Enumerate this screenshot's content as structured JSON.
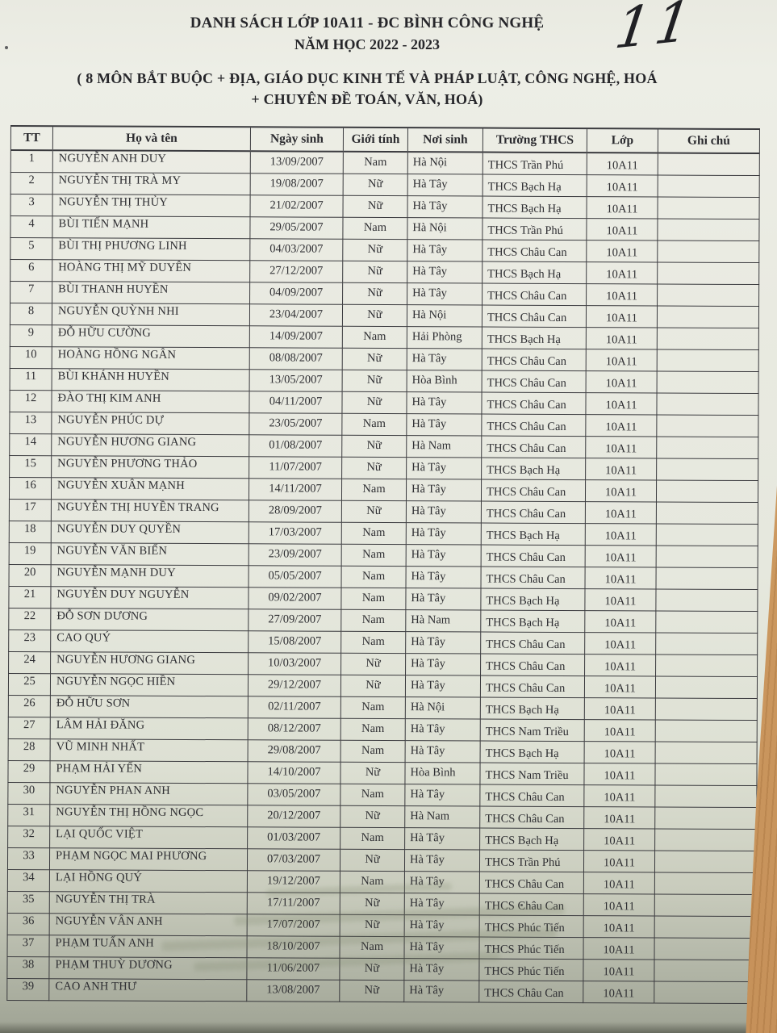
{
  "page": {
    "handwritten_number": "11",
    "title_line1": "DANH SÁCH LỚP 10A11 - ĐC BÌNH CÔNG NGHỆ",
    "title_line2": "NĂM HỌC 2022 - 2023",
    "subtitle_line1": "( 8 MÔN BẮT BUỘC + ĐỊA, GIÁO DỤC KINH TẾ VÀ PHÁP LUẬT, CÔNG NGHỆ, HOÁ",
    "subtitle_line2": "+ CHUYÊN ĐỀ TOÁN, VĂN, HOÁ)"
  },
  "colors": {
    "paper": "#e9eae1",
    "paper_shadow": "#9fa394",
    "ink": "#2e2e32",
    "table_line": "#3a3a3e",
    "desk_wood": "#cd9a60"
  },
  "table": {
    "headers": [
      "TT",
      "Họ và tên",
      "Ngày sinh",
      "Giới tính",
      "Nơi sinh",
      "Trường THCS",
      "Lớp",
      "Ghi chú"
    ],
    "rows": [
      [
        "1",
        "NGUYỄN ANH DUY",
        "13/09/2007",
        "Nam",
        "Hà Nội",
        "THCS Trần Phú",
        "10A11",
        ""
      ],
      [
        "2",
        "NGUYỄN THỊ TRÀ MY",
        "19/08/2007",
        "Nữ",
        "Hà Tây",
        "THCS Bạch Hạ",
        "10A11",
        ""
      ],
      [
        "3",
        "NGUYỄN THỊ THỦY",
        "21/02/2007",
        "Nữ",
        "Hà Tây",
        "THCS Bạch Hạ",
        "10A11",
        ""
      ],
      [
        "4",
        "BÙI TIẾN MẠNH",
        "29/05/2007",
        "Nam",
        "Hà Nội",
        "THCS Trần Phú",
        "10A11",
        ""
      ],
      [
        "5",
        "BÙI THỊ PHƯƠNG LINH",
        "04/03/2007",
        "Nữ",
        "Hà Tây",
        "THCS Châu Can",
        "10A11",
        ""
      ],
      [
        "6",
        "HOÀNG THỊ MỸ DUYÊN",
        "27/12/2007",
        "Nữ",
        "Hà Tây",
        "THCS Bạch Hạ",
        "10A11",
        ""
      ],
      [
        "7",
        "BÙI THANH HUYỀN",
        "04/09/2007",
        "Nữ",
        "Hà Tây",
        "THCS Châu Can",
        "10A11",
        ""
      ],
      [
        "8",
        "NGUYỄN QUỲNH NHI",
        "23/04/2007",
        "Nữ",
        "Hà Nội",
        "THCS Châu Can",
        "10A11",
        ""
      ],
      [
        "9",
        "ĐỖ HỮU CƯỜNG",
        "14/09/2007",
        "Nam",
        "Hải Phòng",
        "THCS Bạch Hạ",
        "10A11",
        ""
      ],
      [
        "10",
        "HOÀNG HỒNG NGÂN",
        "08/08/2007",
        "Nữ",
        "Hà Tây",
        "THCS Châu Can",
        "10A11",
        ""
      ],
      [
        "11",
        "BÙI KHÁNH HUYỀN",
        "13/05/2007",
        "Nữ",
        "Hòa Bình",
        "THCS Châu Can",
        "10A11",
        ""
      ],
      [
        "12",
        "ĐÀO THỊ KIM ANH",
        "04/11/2007",
        "Nữ",
        "Hà Tây",
        "THCS Châu Can",
        "10A11",
        ""
      ],
      [
        "13",
        "NGUYỄN PHÚC DỰ",
        "23/05/2007",
        "Nam",
        "Hà Tây",
        "THCS Châu Can",
        "10A11",
        ""
      ],
      [
        "14",
        "NGUYỄN HƯƠNG GIANG",
        "01/08/2007",
        "Nữ",
        "Hà Nam",
        "THCS Châu Can",
        "10A11",
        ""
      ],
      [
        "15",
        "NGUYỄN PHƯƠNG THẢO",
        "11/07/2007",
        "Nữ",
        "Hà Tây",
        "THCS Bạch Hạ",
        "10A11",
        ""
      ],
      [
        "16",
        "NGUYỄN XUÂN MẠNH",
        "14/11/2007",
        "Nam",
        "Hà Tây",
        "THCS Châu Can",
        "10A11",
        ""
      ],
      [
        "17",
        "NGUYỄN THỊ HUYỀN TRANG",
        "28/09/2007",
        "Nữ",
        "Hà Tây",
        "THCS Châu Can",
        "10A11",
        ""
      ],
      [
        "18",
        "NGUYỄN DUY QUYỀN",
        "17/03/2007",
        "Nam",
        "Hà Tây",
        "THCS Bạch Hạ",
        "10A11",
        ""
      ],
      [
        "19",
        "NGUYỄN VĂN BIỂN",
        "23/09/2007",
        "Nam",
        "Hà Tây",
        "THCS Châu Can",
        "10A11",
        ""
      ],
      [
        "20",
        "NGUYỄN MẠNH DUY",
        "05/05/2007",
        "Nam",
        "Hà Tây",
        "THCS Châu Can",
        "10A11",
        ""
      ],
      [
        "21",
        "NGUYỄN DUY NGUYỄN",
        "09/02/2007",
        "Nam",
        "Hà Tây",
        "THCS Bạch Hạ",
        "10A11",
        ""
      ],
      [
        "22",
        "ĐỖ SƠN DƯƠNG",
        "27/09/2007",
        "Nam",
        "Hà Nam",
        "THCS Bạch Hạ",
        "10A11",
        ""
      ],
      [
        "23",
        "CAO QUÝ",
        "15/08/2007",
        "Nam",
        "Hà Tây",
        "THCS Châu Can",
        "10A11",
        ""
      ],
      [
        "24",
        "NGUYỄN HƯƠNG GIANG",
        "10/03/2007",
        "Nữ",
        "Hà Tây",
        "THCS Châu Can",
        "10A11",
        ""
      ],
      [
        "25",
        "NGUYỄN NGỌC HIỀN",
        "29/12/2007",
        "Nữ",
        "Hà Tây",
        "THCS Châu Can",
        "10A11",
        ""
      ],
      [
        "26",
        "ĐỖ HỮU SƠN",
        "02/11/2007",
        "Nam",
        "Hà Nội",
        "THCS Bạch Hạ",
        "10A11",
        ""
      ],
      [
        "27",
        "LÂM HẢI ĐĂNG",
        "08/12/2007",
        "Nam",
        "Hà Tây",
        "THCS Nam Triều",
        "10A11",
        ""
      ],
      [
        "28",
        "VŨ MINH NHẤT",
        "29/08/2007",
        "Nam",
        "Hà Tây",
        "THCS Bạch Hạ",
        "10A11",
        ""
      ],
      [
        "29",
        "PHẠM HẢI YẾN",
        "14/10/2007",
        "Nữ",
        "Hòa Bình",
        "THCS Nam Triều",
        "10A11",
        ""
      ],
      [
        "30",
        "NGUYỄN PHAN ANH",
        "03/05/2007",
        "Nam",
        "Hà Tây",
        "THCS Châu Can",
        "10A11",
        ""
      ],
      [
        "31",
        "NGUYỄN THỊ HỒNG NGỌC",
        "20/12/2007",
        "Nữ",
        "Hà Nam",
        "THCS Châu Can",
        "10A11",
        ""
      ],
      [
        "32",
        "LẠI QUỐC VIỆT",
        "01/03/2007",
        "Nam",
        "Hà Tây",
        "THCS Bạch Hạ",
        "10A11",
        ""
      ],
      [
        "33",
        "PHẠM NGỌC MAI PHƯƠNG",
        "07/03/2007",
        "Nữ",
        "Hà Tây",
        "THCS Trần Phú",
        "10A11",
        ""
      ],
      [
        "34",
        "LẠI HỒNG QUÝ",
        "19/12/2007",
        "Nam",
        "Hà Tây",
        "THCS Châu Can",
        "10A11",
        ""
      ],
      [
        "35",
        "NGUYỄN THỊ TRÀ",
        "17/11/2007",
        "Nữ",
        "Hà Tây",
        "THCS Châu Can",
        "10A11",
        ""
      ],
      [
        "36",
        "NGUYỄN VÂN ANH",
        "17/07/2007",
        "Nữ",
        "Hà Tây",
        "THCS Phúc Tiến",
        "10A11",
        ""
      ],
      [
        "37",
        "PHẠM TUẤN ANH",
        "18/10/2007",
        "Nam",
        "Hà Tây",
        "THCS Phúc Tiến",
        "10A11",
        ""
      ],
      [
        "38",
        "PHẠM THUỲ DƯƠNG",
        "11/06/2007",
        "Nữ",
        "Hà Tây",
        "THCS Phúc Tiến",
        "10A11",
        ""
      ],
      [
        "39",
        "CAO ANH THƯ",
        "13/08/2007",
        "Nữ",
        "Hà Tây",
        "THCS Châu Can",
        "10A11",
        ""
      ]
    ]
  }
}
